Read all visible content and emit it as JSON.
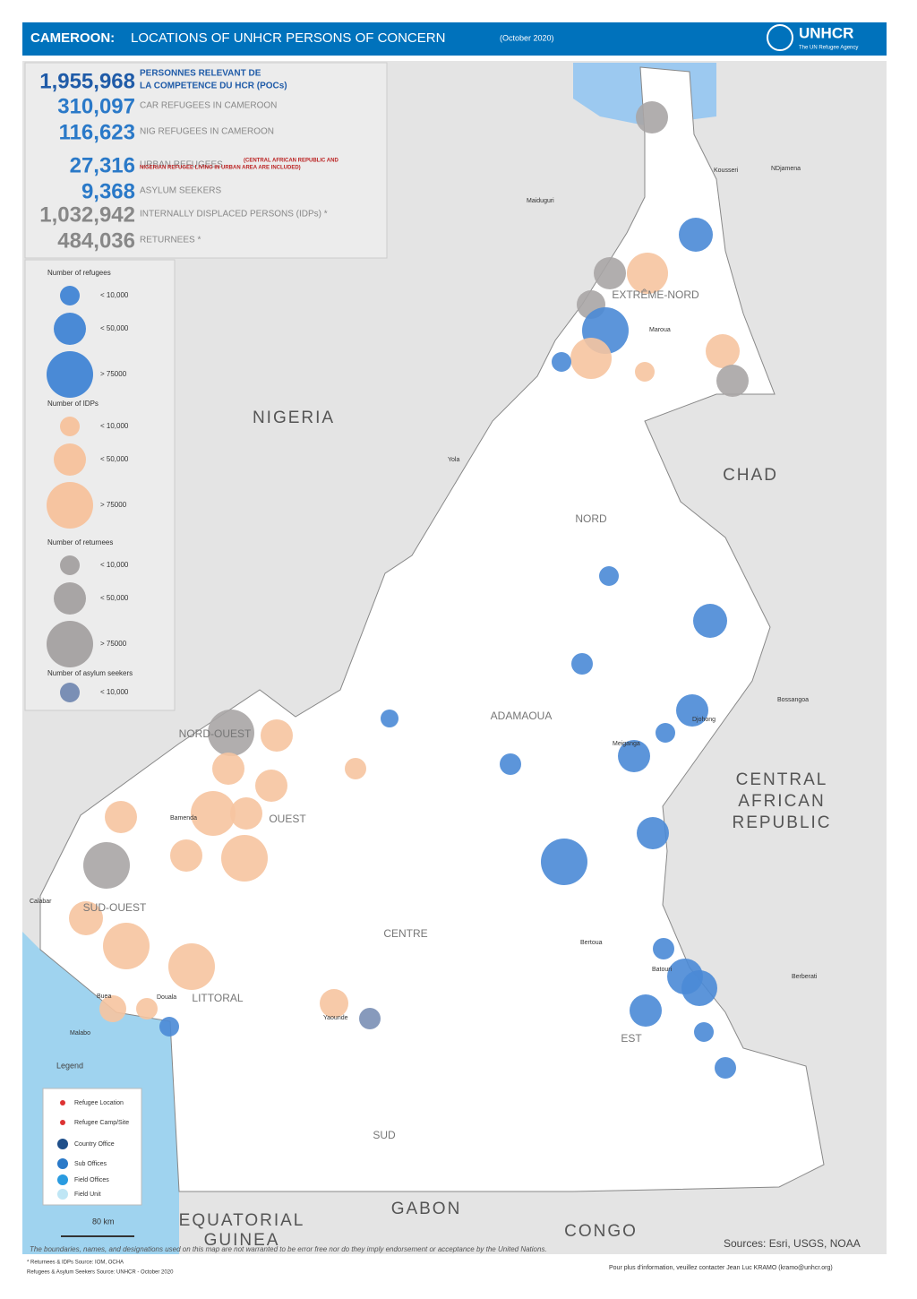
{
  "header": {
    "title_bold": "CAMEROON:",
    "title": "LOCATIONS OF UNHCR PERSONS OF CONCERN",
    "date": "(October 2020)",
    "logo": "UNHCR",
    "logo_sub": "The UN Refugee Agency"
  },
  "stats": [
    {
      "value": "1,955,968",
      "label": "PERSONNES RELEVANT DE",
      "label2": "LA COMPETENCE DU HCR (POCs)"
    },
    {
      "value": "310,097",
      "label": "CAR REFUGEES IN CAMEROON"
    },
    {
      "value": "116,623",
      "label": "NIG REFUGEES IN CAMEROON"
    },
    {
      "value": "27,316",
      "label": "URBAN REFUGEES",
      "note": "(CENTRAL AFRICAN REPUBLIC AND",
      "note2": "NIGERIAN REFUGEE LIVING IN URBAN AREA ARE INCLUDED)"
    },
    {
      "value": "9,368",
      "label": "ASYLUM SEEKERS"
    },
    {
      "value": "1,032,942",
      "label": "INTERNALLY DISPLACED PERSONS (IDPs) *"
    },
    {
      "value": "484,036",
      "label": "RETURNEES *"
    }
  ],
  "size_legend": [
    {
      "title": "Number of refugees",
      "items": [
        "< 10,000",
        "< 50,000",
        "> 75000"
      ]
    },
    {
      "title": "Number of IDPs",
      "items": [
        "< 10,000",
        "< 50,000",
        "> 75000"
      ]
    },
    {
      "title": "Number of returnees",
      "items": [
        "< 10,000",
        "< 50,000",
        "> 75000"
      ]
    },
    {
      "title": "Number of asylum seekers",
      "items": [
        "< 10,000"
      ]
    }
  ],
  "map_legend": {
    "title": "Legend",
    "items": [
      "Refugee Location",
      "Refugee Camp/Site",
      "Country Office",
      "Sub Offices",
      "Field Offices",
      "Field Unit"
    ]
  },
  "scale": "80 km",
  "countries": [
    "NIGERIA",
    "CHAD",
    "CENTRAL",
    "AFRICAN",
    "REPUBLIC",
    "EQUATORIAL",
    "GUINEA",
    "GABON",
    "CONGO"
  ],
  "regions": [
    "EXTRÊME-NORD",
    "NORD",
    "ADAMAOUA",
    "NORD-OUEST",
    "OUEST",
    "SUD-OUEST",
    "LITTORAL",
    "CENTRE",
    "EST",
    "SUD"
  ],
  "cities": [
    "Maiduguri",
    "NDjamena",
    "Kousseri",
    "Maroua",
    "Yola",
    "Bertoua",
    "Batouri",
    "Meiganga",
    "Djohong",
    "Bamenda",
    "Buea",
    "Douala",
    "Yaounde",
    "Bossangoa",
    "Berberati",
    "Malabo",
    "Calabar"
  ],
  "disclaimer": "The boundaries, names, and designations used on this map are not warranted to be error free nor do they imply endorsement or acceptance by the United Nations.",
  "sources": "Sources: Esri, USGS, NOAA",
  "footnotes": [
    "* Returnees & IDPs  Source: IOM, OCHA",
    "Refugees & Asylum Seekers  Source: UNHCR - October 2020"
  ],
  "contact": "Pour plus d'information, veuillez contacter Jean Luc KRAMO (kramo@unhcr.org)"
}
